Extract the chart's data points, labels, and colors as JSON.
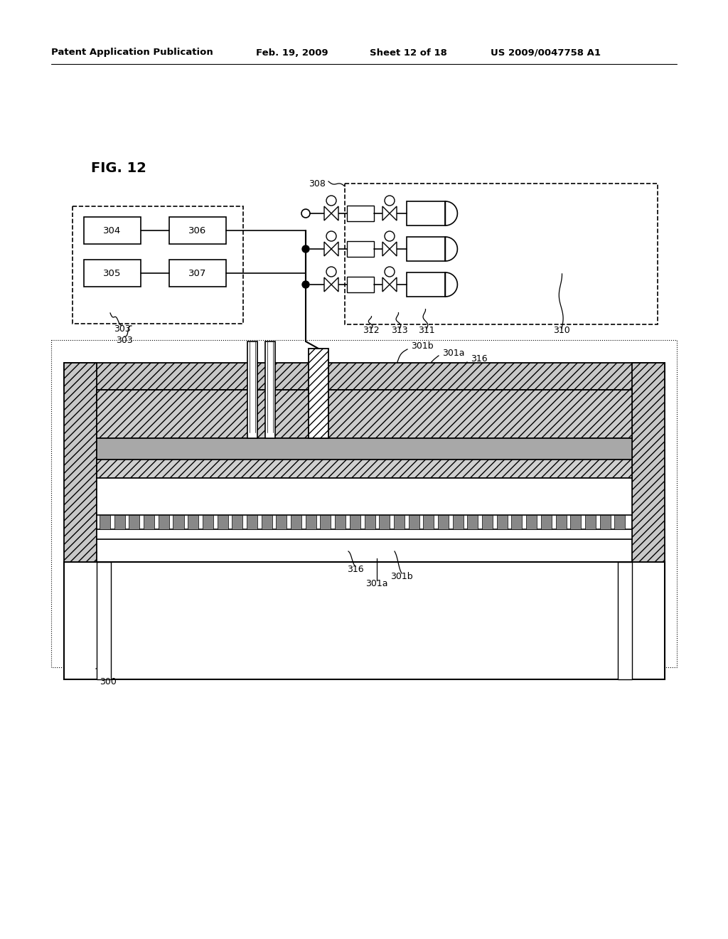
{
  "bg_color": "#ffffff",
  "header_left": "Patent Application Publication",
  "header_mid1": "Feb. 19, 2009",
  "header_mid2": "Sheet 12 of 18",
  "header_right": "US 2009/0047758 A1",
  "fig_label": "FIG. 12",
  "text_color": "#000000"
}
